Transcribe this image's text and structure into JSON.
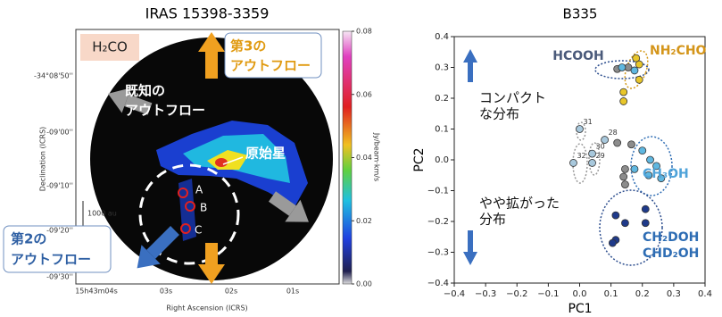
{
  "chart_data": [
    {
      "type": "image",
      "title": "IRAS 15398-3359",
      "xlabel": "Right Ascension (ICRS)",
      "ylabel": "Declination (ICRS)",
      "xtick_labels": [
        "15h43m04s",
        "03s",
        "02s",
        "01s"
      ],
      "ytick_labels": [
        "-34°08'50''",
        "-09'00''",
        "-09'10''",
        "-09'20''",
        "-09'30''"
      ],
      "colorbar_label": "Jy/beam·km/s",
      "clim": [
        0,
        0.08
      ],
      "cticks": [
        {
          "value": 0,
          "label": "0.00"
        },
        0.02,
        0.04,
        0.06,
        0.08
      ],
      "annotations": {
        "molecule": "H₂CO",
        "third_outflow": [
          "第3の",
          "アウトフロー"
        ],
        "known_outflow": [
          "既知の",
          "アウトフロー"
        ],
        "protostar": "原始星",
        "second_outflow": [
          "第2の",
          "アウトフロー"
        ],
        "sources": [
          "A",
          "B",
          "C"
        ],
        "scale_bar": "1000 au"
      }
    },
    {
      "type": "scatter",
      "title": "B335",
      "xlabel": "PC1",
      "ylabel": "PC2",
      "xlim": [
        -0.4,
        0.4
      ],
      "ylim": [
        -0.4,
        0.4
      ],
      "xticks": [
        {
          "value": -0.4,
          "label": "−0.4"
        },
        {
          "value": -0.3,
          "label": "−0.3"
        },
        {
          "value": -0.2,
          "label": "−0.2"
        },
        {
          "value": -0.1,
          "label": "−0.1"
        },
        {
          "value": 0,
          "label": "0.0"
        },
        0.1,
        0.2,
        0.3,
        0.4
      ],
      "yticks": [
        {
          "value": -0.4,
          "label": "−0.4"
        },
        {
          "value": -0.3,
          "label": "−0.3"
        },
        {
          "value": -0.2,
          "label": "−0.2"
        },
        {
          "value": -0.1,
          "label": "−0.1"
        },
        {
          "value": 0,
          "label": "0.0"
        },
        0.1,
        0.2,
        0.3,
        0.4
      ],
      "series": [
        {
          "color": "#8c8c8c",
          "x": [
            0.12,
            0.155,
            0.12,
            0.165,
            0.145,
            0.14,
            0.145
          ],
          "y": [
            0.295,
            0.3,
            0.055,
            0.05,
            -0.03,
            -0.055,
            -0.08
          ]
        },
        {
          "color": "#5fb7e0",
          "x": [
            0.135,
            0.175,
            0.2,
            0.225,
            0.245,
            0.22,
            0.26,
            0.175
          ],
          "y": [
            0.3,
            0.29,
            0.03,
            0.0,
            -0.02,
            -0.05,
            -0.06,
            -0.03
          ]
        },
        {
          "color": "#e8c62a",
          "x": [
            0.19,
            0.18,
            0.19,
            0.14,
            0.14
          ],
          "y": [
            0.31,
            0.33,
            0.26,
            0.22,
            0.19
          ]
        },
        {
          "color": "#1f3a8a",
          "x": [
            0.115,
            0.145,
            0.115,
            0.105,
            0.21,
            0.21
          ],
          "y": [
            -0.18,
            -0.205,
            -0.26,
            -0.27,
            -0.16,
            -0.205
          ]
        },
        {
          "color": "#a8c8dc",
          "labels": [
            "31",
            "28",
            "30",
            "32",
            "29"
          ],
          "x": [
            0.0,
            0.08,
            0.04,
            -0.02,
            0.04
          ],
          "y": [
            0.1,
            0.065,
            0.02,
            -0.01,
            -0.01
          ]
        }
      ],
      "group_labels": [
        {
          "text": "HCOOH",
          "color": "#4a5a7a"
        },
        {
          "text": "NH₂CHO",
          "color": "#d4951a"
        },
        {
          "text": "CH₃OH",
          "color": "#4fa3d9"
        },
        {
          "text": "CH₂DOH",
          "color": "#2e6db4"
        },
        {
          "text": "CHD₂OH",
          "color": "#2e6db4"
        }
      ],
      "notes": [
        [
          "コンパクト",
          "な分布"
        ],
        [
          "やや拡がった",
          "分布"
        ]
      ]
    }
  ]
}
